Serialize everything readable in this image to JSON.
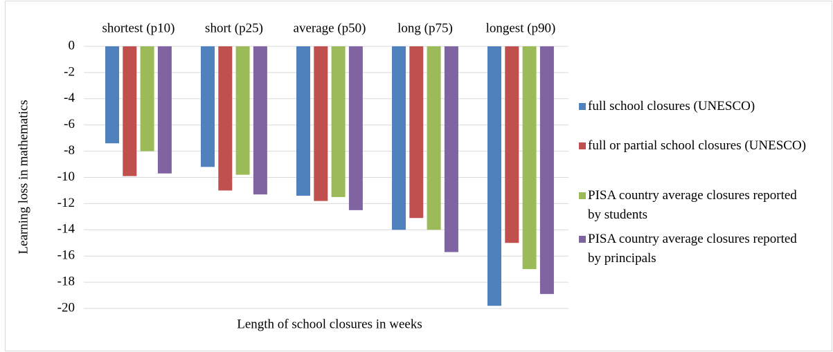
{
  "chart_data": {
    "type": "bar",
    "y_label": "Learning loss in mathematics",
    "x_label": "Length of school closures in weeks",
    "categories": [
      "shortest (p10)",
      "short (p25)",
      "average (p50)",
      "long (p75)",
      "longest (p90)"
    ],
    "series": [
      {
        "name": "full school closures (UNESCO)",
        "color": "#4f81bd",
        "values": [
          -7.4,
          -9.2,
          -11.4,
          -14.0,
          -19.8
        ]
      },
      {
        "name": "full or partial school closures (UNESCO)",
        "color": "#c0504d",
        "values": [
          -9.9,
          -11.0,
          -11.8,
          -13.1,
          -15.0
        ]
      },
      {
        "name": "PISA country average closures reported by students",
        "color": "#9bbb59",
        "values": [
          -8.0,
          -9.8,
          -11.5,
          -14.0,
          -17.0
        ]
      },
      {
        "name": "PISA country average closures reported by principals",
        "color": "#8064a2",
        "values": [
          -9.7,
          -11.3,
          -12.5,
          -15.7,
          -18.9
        ]
      }
    ],
    "ylim": [
      -20,
      0
    ],
    "yticks": [
      0,
      -2,
      -4,
      -6,
      -8,
      -10,
      -12,
      -14,
      -16,
      -18,
      -20
    ],
    "grid": true
  }
}
